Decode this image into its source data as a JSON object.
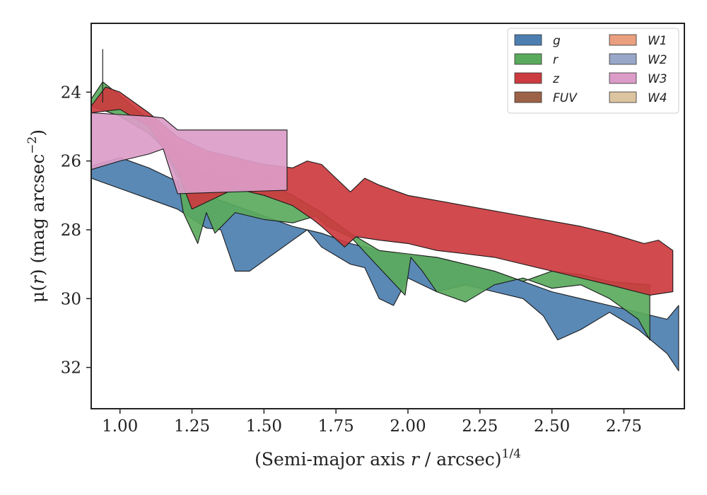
{
  "chart_data": {
    "type": "area",
    "xlabel": "(Semi-major axis r / arcsec)^1/4",
    "xlabel_parts": [
      "(Semi-major axis ",
      "r",
      " / arcsec)",
      "1/4"
    ],
    "ylabel": "μ(r) (mag arcsec^−2)",
    "ylabel_parts": [
      "μ(",
      "r",
      ") (mag arcsec",
      "−2",
      ")"
    ],
    "xlim": [
      0.9,
      2.96
    ],
    "ylim": [
      33.2,
      22.0
    ],
    "y_inverted": true,
    "x_ticks": [
      1.0,
      1.25,
      1.5,
      1.75,
      2.0,
      2.25,
      2.5,
      2.75
    ],
    "x_tick_labels": [
      "1.00",
      "1.25",
      "1.50",
      "1.75",
      "2.00",
      "2.25",
      "2.50",
      "2.75"
    ],
    "y_ticks": [
      24,
      26,
      28,
      30,
      32
    ],
    "y_tick_labels": [
      "24",
      "26",
      "28",
      "30",
      "32"
    ],
    "legend_position": "upper-right",
    "legend_columns": 2,
    "legend": [
      {
        "label": "g",
        "color": "#4c7fb0"
      },
      {
        "label": "r",
        "color": "#5aaa5d"
      },
      {
        "label": "z",
        "color": "#cc3b3f"
      },
      {
        "label": "FUV",
        "color": "#9c6247"
      },
      {
        "label": "W1",
        "color": "#eaa07f"
      },
      {
        "label": "W2",
        "color": "#98a7c9"
      },
      {
        "label": "W3",
        "color": "#dc9cc8"
      },
      {
        "label": "W4",
        "color": "#dcc4a0"
      }
    ],
    "series": [
      {
        "name": "g",
        "color": "#4c7fb0",
        "upper": [
          [
            0.9,
            26.15
          ],
          [
            1.0,
            25.9
          ],
          [
            1.1,
            26.2
          ],
          [
            1.2,
            26.6
          ],
          [
            1.3,
            27.0
          ],
          [
            1.4,
            27.3
          ],
          [
            1.5,
            27.6
          ],
          [
            1.6,
            27.9
          ],
          [
            1.7,
            28.1
          ],
          [
            1.8,
            28.4
          ],
          [
            1.9,
            28.6
          ],
          [
            2.0,
            28.75
          ],
          [
            2.1,
            28.8
          ],
          [
            2.2,
            29.0
          ],
          [
            2.3,
            29.2
          ],
          [
            2.4,
            29.5
          ],
          [
            2.5,
            29.8
          ],
          [
            2.6,
            30.0
          ],
          [
            2.7,
            30.2
          ],
          [
            2.8,
            30.4
          ],
          [
            2.9,
            30.6
          ],
          [
            2.94,
            30.2
          ]
        ],
        "lower": [
          [
            0.9,
            26.5
          ],
          [
            1.0,
            26.8
          ],
          [
            1.1,
            27.1
          ],
          [
            1.2,
            27.4
          ],
          [
            1.3,
            27.95
          ],
          [
            1.35,
            28.0
          ],
          [
            1.4,
            29.2
          ],
          [
            1.45,
            29.2
          ],
          [
            1.5,
            28.9
          ],
          [
            1.6,
            28.3
          ],
          [
            1.65,
            28.0
          ],
          [
            1.7,
            28.5
          ],
          [
            1.8,
            29.0
          ],
          [
            1.85,
            29.1
          ],
          [
            1.9,
            30.0
          ],
          [
            1.95,
            30.2
          ],
          [
            2.0,
            29.4
          ],
          [
            2.1,
            29.8
          ],
          [
            2.2,
            29.6
          ],
          [
            2.3,
            29.8
          ],
          [
            2.4,
            30.0
          ],
          [
            2.47,
            30.5
          ],
          [
            2.52,
            31.2
          ],
          [
            2.6,
            30.9
          ],
          [
            2.7,
            30.4
          ],
          [
            2.8,
            30.9
          ],
          [
            2.9,
            31.6
          ],
          [
            2.94,
            32.1
          ]
        ]
      },
      {
        "name": "r",
        "color": "#5aaa5d",
        "upper": [
          [
            0.9,
            24.2
          ],
          [
            0.94,
            23.7
          ],
          [
            1.0,
            24.1
          ],
          [
            1.1,
            24.8
          ],
          [
            1.2,
            25.8
          ],
          [
            1.3,
            26.4
          ],
          [
            1.4,
            26.5
          ],
          [
            1.5,
            26.6
          ],
          [
            1.6,
            27.0
          ],
          [
            1.7,
            27.5
          ],
          [
            1.8,
            28.1
          ],
          [
            1.9,
            28.6
          ],
          [
            2.0,
            28.7
          ],
          [
            2.1,
            28.8
          ],
          [
            2.2,
            29.0
          ],
          [
            2.3,
            29.2
          ],
          [
            2.4,
            29.5
          ],
          [
            2.5,
            29.2
          ],
          [
            2.6,
            29.3
          ],
          [
            2.7,
            29.5
          ],
          [
            2.84,
            29.6
          ]
        ],
        "lower": [
          [
            0.9,
            24.4
          ],
          [
            1.0,
            24.7
          ],
          [
            1.1,
            25.2
          ],
          [
            1.15,
            25.6
          ],
          [
            1.2,
            26.5
          ],
          [
            1.22,
            27.5
          ],
          [
            1.27,
            28.4
          ],
          [
            1.3,
            27.5
          ],
          [
            1.33,
            28.1
          ],
          [
            1.4,
            27.5
          ],
          [
            1.5,
            27.7
          ],
          [
            1.6,
            27.8
          ],
          [
            1.68,
            27.6
          ],
          [
            1.72,
            27.9
          ],
          [
            1.8,
            28.2
          ],
          [
            1.9,
            29.1
          ],
          [
            1.99,
            29.9
          ],
          [
            2.01,
            28.8
          ],
          [
            2.05,
            29.2
          ],
          [
            2.1,
            29.8
          ],
          [
            2.2,
            30.1
          ],
          [
            2.3,
            29.6
          ],
          [
            2.4,
            29.4
          ],
          [
            2.5,
            29.7
          ],
          [
            2.6,
            29.6
          ],
          [
            2.7,
            30.0
          ],
          [
            2.8,
            30.6
          ],
          [
            2.84,
            31.2
          ]
        ]
      },
      {
        "name": "z",
        "color": "#cc3b3f",
        "upper": [
          [
            0.9,
            24.4
          ],
          [
            0.95,
            23.85
          ],
          [
            1.0,
            24.0
          ],
          [
            1.1,
            24.6
          ],
          [
            1.2,
            25.3
          ],
          [
            1.3,
            25.7
          ],
          [
            1.4,
            25.9
          ],
          [
            1.5,
            26.1
          ],
          [
            1.6,
            26.2
          ],
          [
            1.65,
            26.0
          ],
          [
            1.7,
            26.1
          ],
          [
            1.75,
            26.5
          ],
          [
            1.8,
            26.9
          ],
          [
            1.85,
            26.5
          ],
          [
            1.9,
            26.7
          ],
          [
            2.0,
            27.0
          ],
          [
            2.2,
            27.3
          ],
          [
            2.4,
            27.6
          ],
          [
            2.6,
            27.9
          ],
          [
            2.7,
            28.1
          ],
          [
            2.82,
            28.4
          ],
          [
            2.87,
            28.3
          ],
          [
            2.92,
            28.6
          ]
        ],
        "lower": [
          [
            0.9,
            24.6
          ],
          [
            1.0,
            24.5
          ],
          [
            1.1,
            25.0
          ],
          [
            1.2,
            26.3
          ],
          [
            1.25,
            27.4
          ],
          [
            1.3,
            27.2
          ],
          [
            1.4,
            26.8
          ],
          [
            1.5,
            27.0
          ],
          [
            1.6,
            27.3
          ],
          [
            1.67,
            27.7
          ],
          [
            1.7,
            27.9
          ],
          [
            1.78,
            28.5
          ],
          [
            1.82,
            28.2
          ],
          [
            1.9,
            28.3
          ],
          [
            2.0,
            28.4
          ],
          [
            2.1,
            28.6
          ],
          [
            2.2,
            28.7
          ],
          [
            2.3,
            28.8
          ],
          [
            2.4,
            29.0
          ],
          [
            2.5,
            29.2
          ],
          [
            2.6,
            29.4
          ],
          [
            2.7,
            29.6
          ],
          [
            2.84,
            29.9
          ],
          [
            2.92,
            29.8
          ]
        ]
      },
      {
        "name": "W3",
        "color": "#dc9cc8",
        "upper": [
          [
            0.9,
            24.6
          ],
          [
            1.0,
            24.65
          ],
          [
            1.1,
            24.7
          ],
          [
            1.15,
            24.75
          ],
          [
            1.2,
            25.1
          ],
          [
            1.58,
            25.1
          ]
        ],
        "lower": [
          [
            0.9,
            26.25
          ],
          [
            1.0,
            26.0
          ],
          [
            1.1,
            25.8
          ],
          [
            1.15,
            25.65
          ],
          [
            1.2,
            26.95
          ],
          [
            1.58,
            26.85
          ]
        ]
      }
    ],
    "error_bar": {
      "x": 0.94,
      "y_low": 22.75,
      "y_high": 24.3
    }
  }
}
